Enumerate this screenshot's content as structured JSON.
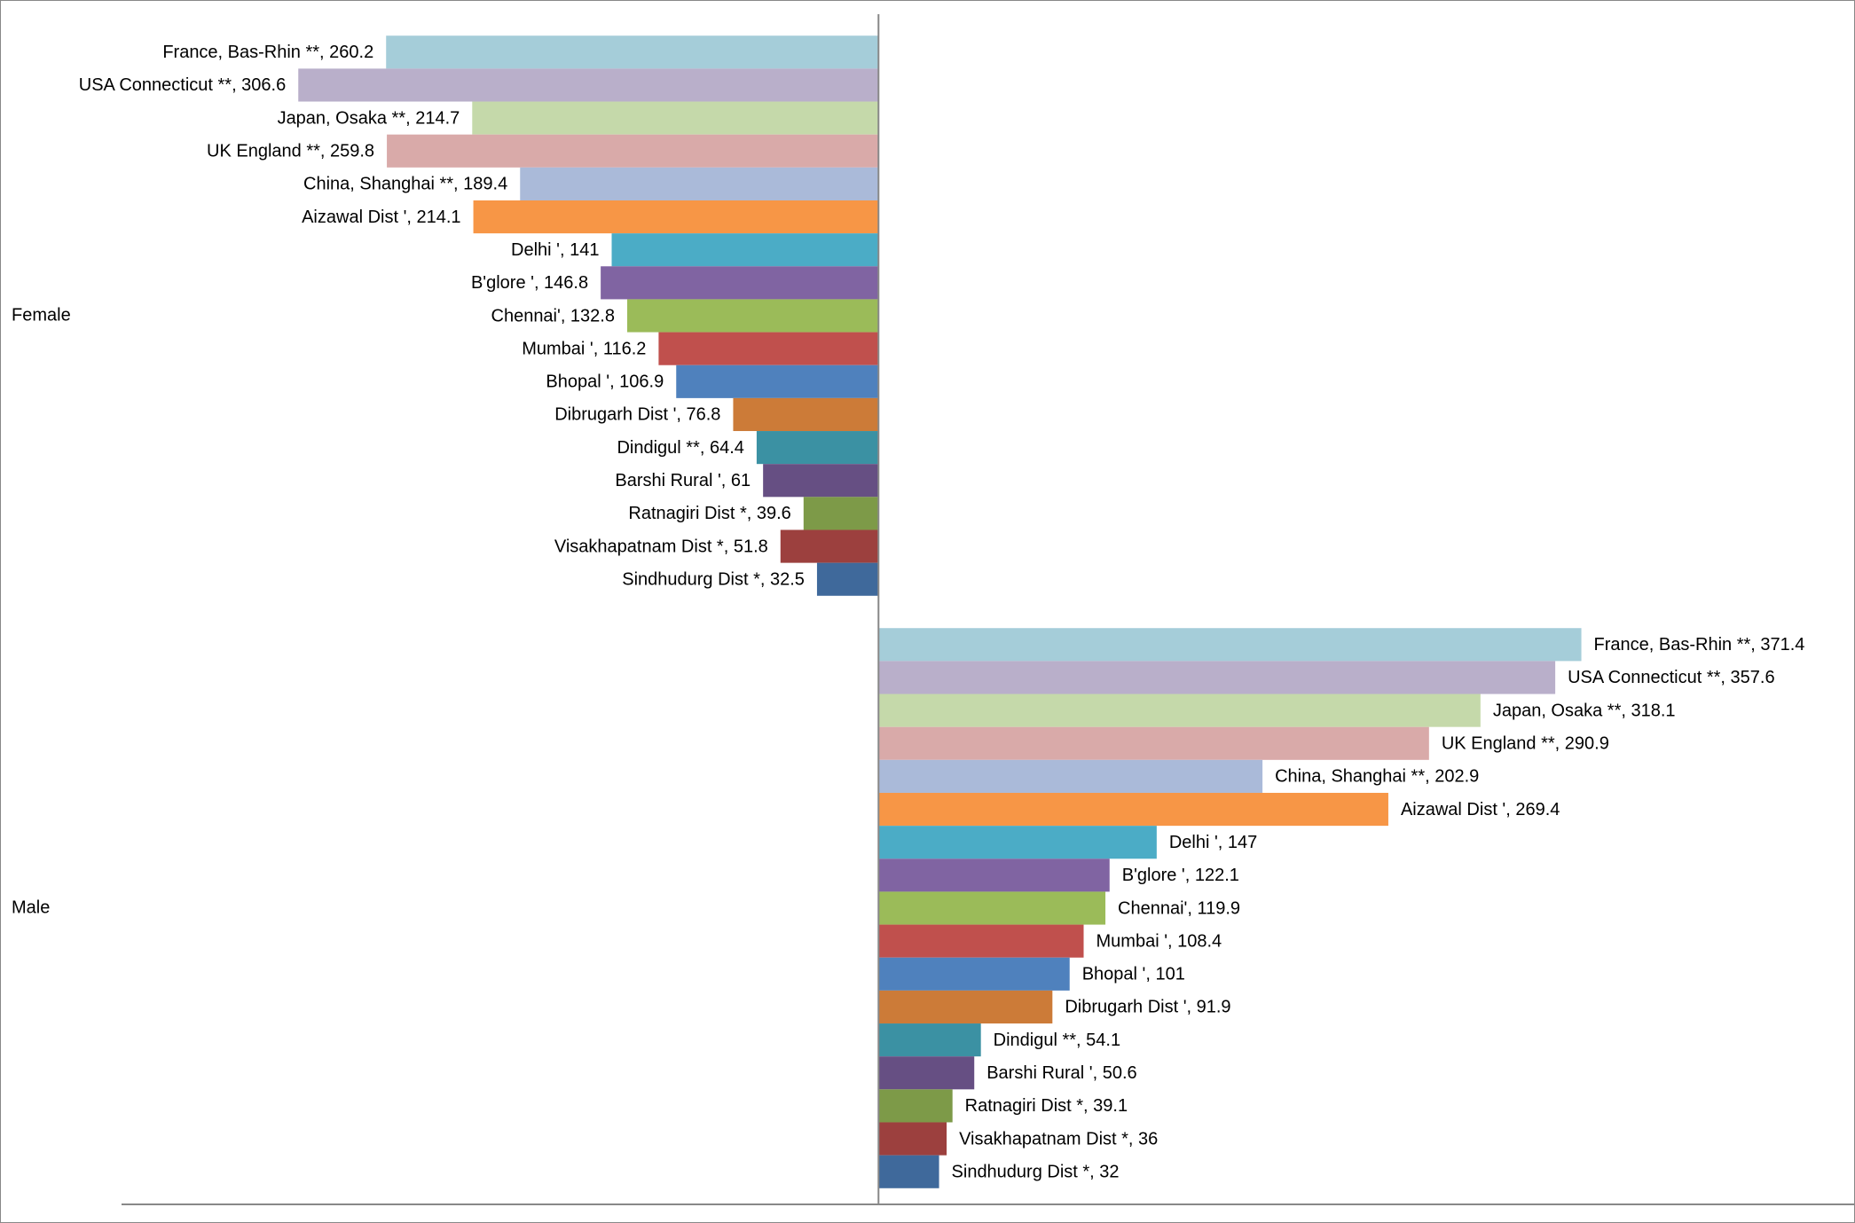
{
  "chart_data": {
    "type": "bar",
    "orientation": "horizontal",
    "groups": [
      "Female",
      "Male"
    ],
    "bar_direction": [
      "left",
      "right"
    ],
    "xlim": [
      -400,
      516
    ],
    "series": [
      {
        "color": "#a5cdd9",
        "values": [
          260.2,
          371.4
        ],
        "value_labels": [
          "France, Bas-Rhin **, 260.2",
          "France, Bas-Rhin **, 371.4"
        ]
      },
      {
        "color": "#b9afca",
        "values": [
          306.6,
          357.6
        ],
        "value_labels": [
          "USA Connecticut **, 306.6",
          "USA Connecticut **, 357.6"
        ]
      },
      {
        "color": "#c5d9aa",
        "values": [
          214.7,
          318.1
        ],
        "value_labels": [
          "Japan, Osaka **, 214.7",
          "Japan, Osaka **, 318.1"
        ]
      },
      {
        "color": "#d9aaa9",
        "values": [
          259.8,
          290.9
        ],
        "value_labels": [
          "UK England **, 259.8",
          "UK England **, 290.9"
        ]
      },
      {
        "color": "#aabad9",
        "values": [
          189.4,
          202.9
        ],
        "value_labels": [
          "China, Shanghai **, 189.4",
          "China, Shanghai **, 202.9"
        ]
      },
      {
        "color": "#f79646",
        "values": [
          214.1,
          269.4
        ],
        "value_labels": [
          "Aizawal Dist ', 214.1",
          "Aizawal Dist ', 269.4"
        ]
      },
      {
        "color": "#4bacc6",
        "values": [
          141,
          147
        ],
        "value_labels": [
          "Delhi ', 141",
          "Delhi ', 147"
        ]
      },
      {
        "color": "#8064a2",
        "values": [
          146.8,
          122.1
        ],
        "value_labels": [
          "B'glore ', 146.8",
          "B'glore ', 122.1"
        ]
      },
      {
        "color": "#9bbb59",
        "values": [
          132.8,
          119.9
        ],
        "value_labels": [
          "Chennai', 132.8",
          "Chennai', 119.9"
        ]
      },
      {
        "color": "#c0504d",
        "values": [
          116.2,
          108.4
        ],
        "value_labels": [
          "Mumbai ', 116.2",
          "Mumbai ', 108.4"
        ]
      },
      {
        "color": "#4f81bd",
        "values": [
          106.9,
          101
        ],
        "value_labels": [
          "Bhopal ', 106.9",
          "Bhopal ', 101"
        ]
      },
      {
        "color": "#cc7b38",
        "values": [
          76.8,
          91.9
        ],
        "value_labels": [
          "Dibrugarh Dist ', 76.8",
          "Dibrugarh Dist ', 91.9"
        ]
      },
      {
        "color": "#3b91a3",
        "values": [
          64.4,
          54.1
        ],
        "value_labels": [
          "Dindigul **, 64.4",
          "Dindigul **, 54.1"
        ]
      },
      {
        "color": "#664f83",
        "values": [
          61,
          50.6
        ],
        "value_labels": [
          "Barshi Rural ', 61",
          "Barshi Rural ', 50.6"
        ]
      },
      {
        "color": "#7d9a48",
        "values": [
          39.6,
          39.1
        ],
        "value_labels": [
          "Ratnagiri Dist *, 39.6",
          "Ratnagiri Dist *, 39.1"
        ]
      },
      {
        "color": "#9c403e",
        "values": [
          51.8,
          36
        ],
        "value_labels": [
          "Visakhapatnam Dist *, 51.8",
          "Visakhapatnam Dist *, 36"
        ]
      },
      {
        "color": "#3f699b",
        "values": [
          32.5,
          32
        ],
        "value_labels": [
          "Sindhudurg Dist *, 32.5",
          "Sindhudurg Dist *, 32"
        ]
      }
    ]
  }
}
